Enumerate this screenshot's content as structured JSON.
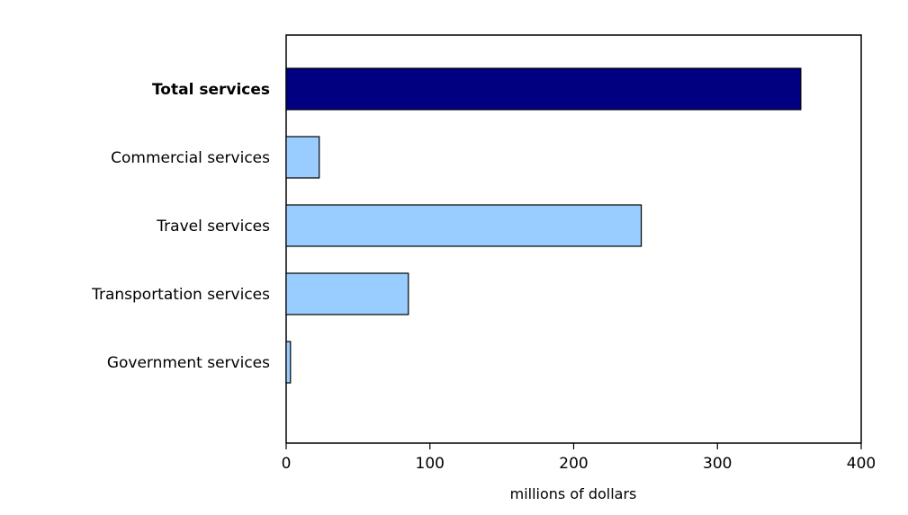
{
  "chart_data": {
    "type": "bar",
    "orientation": "horizontal",
    "categories": [
      "Total services",
      "Commercial services",
      "Travel services",
      "Transportation services",
      "Government services"
    ],
    "values": [
      358,
      23,
      247,
      85,
      3
    ],
    "highlight_category": "Total services",
    "title": "",
    "xlabel": "millions of dollars",
    "ylabel": "",
    "xlim": [
      0,
      400
    ],
    "xticks": [
      0,
      100,
      200,
      300,
      400
    ],
    "grid": false,
    "legend": "none",
    "colors": {
      "highlight": "#000080",
      "bar": "#99ccff",
      "outline": "#000000"
    }
  }
}
